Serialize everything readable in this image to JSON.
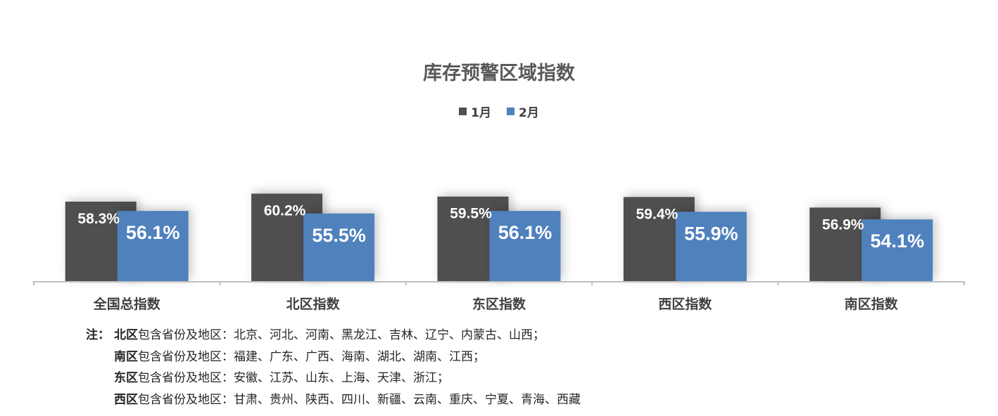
{
  "chart_data": {
    "type": "bar",
    "title": "库存预警区域指数",
    "categories": [
      "全国总指数",
      "北区指数",
      "东区指数",
      "西区指数",
      "南区指数"
    ],
    "series": [
      {
        "name": "1月",
        "values": [
          58.3,
          60.2,
          59.5,
          59.4,
          56.9
        ],
        "labels": [
          "58.3%",
          "60.2%",
          "59.5%",
          "59.4%",
          "56.9%"
        ],
        "color": "#505050"
      },
      {
        "name": "2月",
        "values": [
          56.1,
          55.5,
          56.1,
          55.9,
          54.1
        ],
        "labels": [
          "56.1%",
          "55.5%",
          "56.1%",
          "55.9%",
          "54.1%"
        ],
        "color": "#4f81bd"
      }
    ],
    "ylim": [
      39.5,
      62
    ],
    "unit": "%",
    "legend_position": "top-center",
    "grid": false
  },
  "notes": {
    "prefix": "注：",
    "items": [
      {
        "region": "北区",
        "text": "包含省份及地区：北京、河北、河南、黑龙江、吉林、辽宁、内蒙古、山西；"
      },
      {
        "region": "南区",
        "text": "包含省份及地区：福建、广东、广西、海南、湖北、湖南、江西；"
      },
      {
        "region": "东区",
        "text": "包含省份及地区：安徽、江苏、山东、上海、天津、浙江；"
      },
      {
        "region": "西区",
        "text": "包含省份及地区：甘肃、贵州、陕西、四川、新疆、云南、重庆、宁夏、青海、西藏"
      }
    ]
  }
}
